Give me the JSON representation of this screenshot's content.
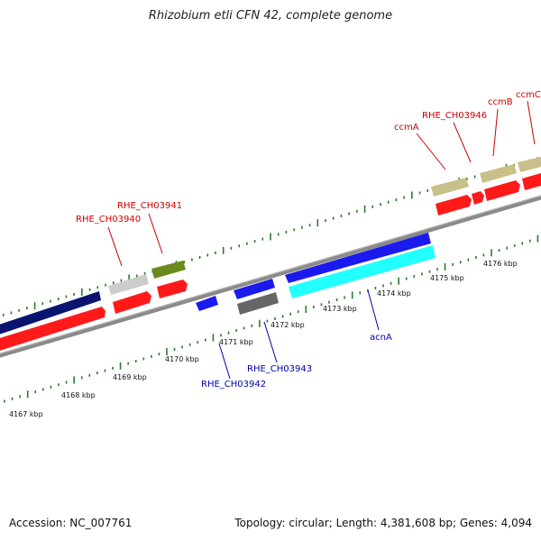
{
  "title": "Rhizobium etli CFN 42, complete genome",
  "footer": {
    "accession": "Accession: NC_007761",
    "topology": "Topology: circular; Length: 4,381,608 bp; Genes: 4,094"
  },
  "kbp_labels": [
    "4167 kbp",
    "4168 kbp",
    "4169 kbp",
    "4170 kbp",
    "4171 kbp",
    "4172 kbp",
    "4173 kbp",
    "4174 kbp",
    "4175 kbp",
    "4176 kbp"
  ],
  "gene_labels": {
    "rhe_ch03940": "RHE_CH03940",
    "rhe_ch03941": "RHE_CH03941",
    "rhe_ch03942": "RHE_CH03942",
    "rhe_ch03943": "RHE_CH03943",
    "rhe_ch03946": "RHE_CH03946",
    "acnA": "acnA",
    "ccmA": "ccmA",
    "ccmB": "ccmB",
    "ccmC": "ccmC"
  },
  "colors": {
    "forward_label": "#cc0000",
    "reverse_label": "#0000aa",
    "tick": "#2a7a2a",
    "backbone": "#888888",
    "cds": "#ff1a1a",
    "navy": "#0a1470",
    "blue": "#1a1aee",
    "cyan": "#22ffff",
    "olive": "#6b8a1e",
    "khaki": "#c8c088",
    "gray": "#cccccc",
    "darkgray": "#666666"
  }
}
